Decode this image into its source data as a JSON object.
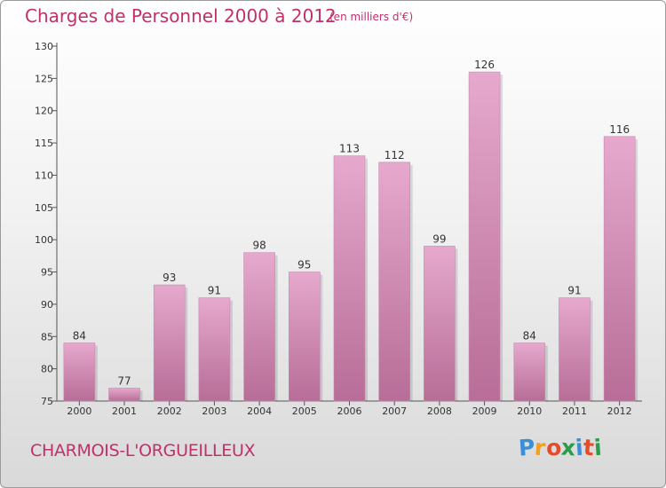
{
  "title": "Charges de Personnel 2000 à 2012",
  "subtitle": "(en milliers d'€)",
  "place": "CHARMOIS-L'ORGUEILLEUX",
  "logo_text": "Proxiti",
  "colors": {
    "title": "#c0306a",
    "bar_light": "#e6a9cd",
    "bar_dark": "#b76d97",
    "logo_letters": [
      "#3b8fd6",
      "#f0a020",
      "#e34c2c",
      "#2a9d4a",
      "#3b8fd6",
      "#e34c2c",
      "#2a9d4a"
    ]
  },
  "chart_data": {
    "type": "bar",
    "categories": [
      "2000",
      "2001",
      "2002",
      "2003",
      "2004",
      "2005",
      "2006",
      "2007",
      "2008",
      "2009",
      "2010",
      "2011",
      "2012"
    ],
    "values": [
      84,
      77,
      93,
      91,
      98,
      95,
      113,
      112,
      99,
      126,
      84,
      91,
      116
    ],
    "data_labels": [
      "84",
      "77",
      "93",
      "91",
      "98",
      "95",
      "113",
      "112",
      "99",
      "126",
      "84",
      "91",
      "116"
    ],
    "ylim": [
      75,
      130
    ],
    "yticks": [
      75,
      80,
      85,
      90,
      95,
      100,
      105,
      110,
      115,
      120,
      125,
      130
    ],
    "ytick_labels": [
      "75",
      "80",
      "85",
      "90",
      "95",
      "100",
      "105",
      "110",
      "115",
      "120",
      "125",
      "130"
    ],
    "grid": false
  }
}
